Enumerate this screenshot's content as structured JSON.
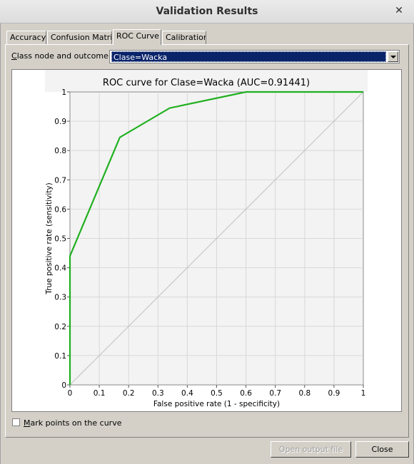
{
  "window": {
    "title": "Validation Results"
  },
  "tabs": [
    {
      "label": "Accuracy"
    },
    {
      "label": "Confusion Matri"
    },
    {
      "label": "ROC Curve"
    },
    {
      "label": "Calibratior"
    }
  ],
  "class_node": {
    "label_prefix": "C",
    "label_rest": "lass node and outcome",
    "selected": "Clase=Wacka"
  },
  "mark_points": {
    "label_prefix": "M",
    "label_rest": "ark points on the curve",
    "checked": false
  },
  "buttons": {
    "open_output_file": "Open output file",
    "close": "Close"
  },
  "chart_data": {
    "type": "line",
    "title": "ROC curve for Clase=Wacka (AUC=0.91441)",
    "xlabel": "False positive rate (1 - specificity)",
    "ylabel": "True positive rate (sensitivity)",
    "xlim": [
      0,
      1
    ],
    "ylim": [
      0,
      1
    ],
    "xticks": [
      "0",
      "0.1",
      "0.2",
      "0.3",
      "0.4",
      "0.5",
      "0.6",
      "0.7",
      "0.8",
      "0.9",
      "1"
    ],
    "yticks": [
      "0",
      "0.1",
      "0.2",
      "0.3",
      "0.4",
      "0.5",
      "0.6",
      "0.7",
      "0.8",
      "0.9",
      "1"
    ],
    "grid": true,
    "series": [
      {
        "x": [
          0,
          0,
          0.17,
          0.34,
          0.6,
          1
        ],
        "y": [
          0,
          0.44,
          0.845,
          0.945,
          1,
          1
        ],
        "color": "#1fb01f"
      }
    ],
    "diagonal": {
      "x": [
        0,
        1
      ],
      "y": [
        0,
        1
      ],
      "color": "#c0c0c0"
    }
  }
}
